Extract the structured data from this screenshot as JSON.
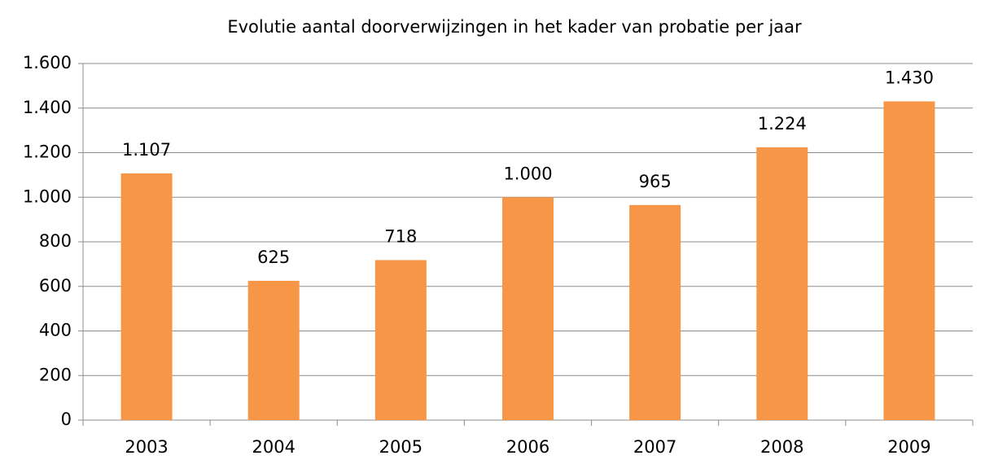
{
  "chart_data": {
    "type": "bar",
    "title": "Evolutie aantal doorverwijzingen in het kader van probatie per jaar",
    "categories": [
      "2003",
      "2004",
      "2005",
      "2006",
      "2007",
      "2008",
      "2009"
    ],
    "values": [
      1107,
      625,
      718,
      1000,
      965,
      1224,
      1430
    ],
    "value_labels": [
      "1.107",
      "625",
      "718",
      "1.000",
      "965",
      "1.224",
      "1.430"
    ],
    "color": "#f79646",
    "ylim": [
      0,
      1600
    ],
    "yticks": [
      0,
      200,
      400,
      600,
      800,
      {
        "value": 1000,
        "label": "1.000"
      },
      {
        "value": 1200,
        "label": "1.200"
      },
      {
        "value": 1400,
        "label": "1.400"
      },
      {
        "value": 1600,
        "label": "1.600"
      }
    ],
    "grid": true
  }
}
